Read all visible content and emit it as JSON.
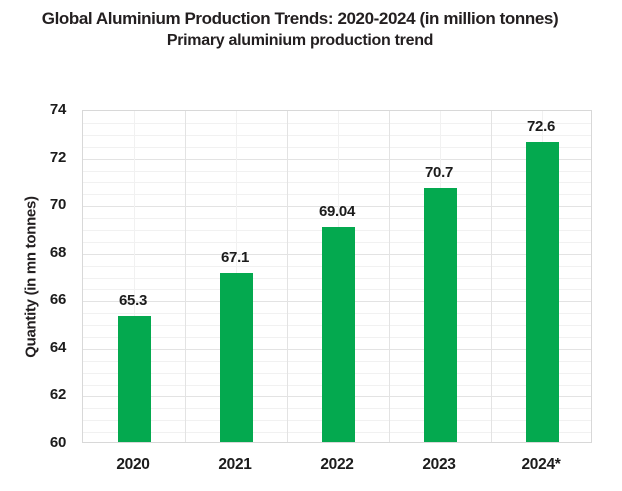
{
  "header": {
    "title": "Global Aluminium Production Trends: 2020-2024 (in million tonnes)",
    "subtitle": "Primary aluminium production trend"
  },
  "colors": {
    "bar": "#04a94f",
    "grid_minor": "#f1f1f1",
    "grid_major": "#e3e3e3",
    "plot_border": "#d8d8d8",
    "text": "#231f20"
  },
  "chart_data": {
    "type": "bar",
    "title": "Global Aluminium Production Trends: 2020-2024 (in million tonnes)",
    "subtitle": "Primary aluminium production trend",
    "categories": [
      "2020",
      "2021",
      "2022",
      "2023",
      "2024*"
    ],
    "values": [
      65.3,
      67.1,
      69.04,
      70.7,
      72.6
    ],
    "value_labels": [
      "65.3",
      "67.1",
      "69.04",
      "70.7",
      "72.6"
    ],
    "xlabel": "",
    "ylabel": "Quantity (in mn tonnes)",
    "ylim": [
      60,
      74
    ],
    "yticks": [
      60,
      62,
      64,
      66,
      68,
      70,
      72,
      74
    ],
    "ytick_step": 2,
    "minor_grid_step": 0.5,
    "grid": true,
    "legend_position": "none",
    "bar_color": "#04a94f"
  }
}
